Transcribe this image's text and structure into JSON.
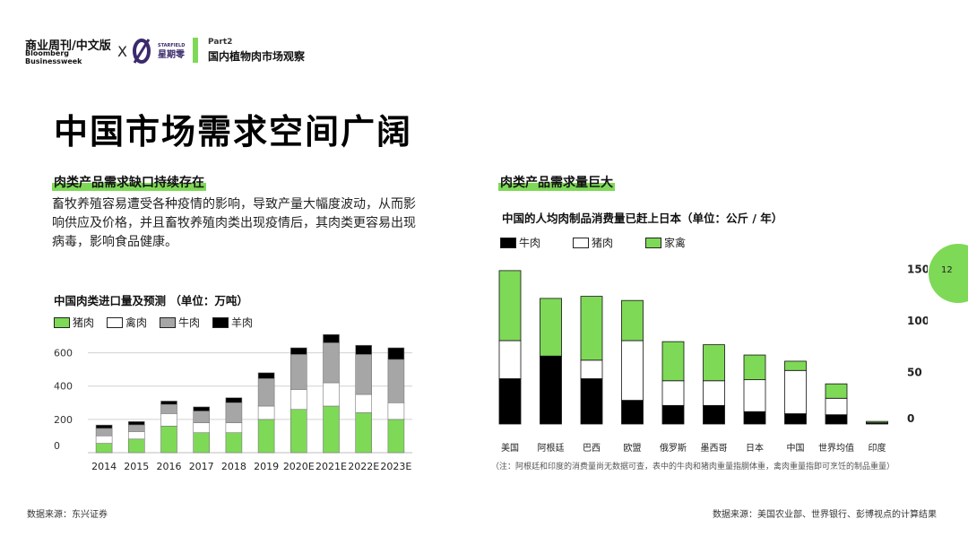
{
  "header": {
    "brand_cn": "商业周刊/中文版",
    "brand_en": "Bloomberg Businessweek",
    "separator": "X",
    "partner_cn": "星期零",
    "partner_en": "STARFIELD",
    "part_label": "Part2",
    "part_title": "国内植物肉市场观察",
    "accent_color": "#7ed957"
  },
  "main_title": "中国市场需求空间广阔",
  "left": {
    "subtitle": "肉类产品需求缺口持续存在",
    "paragraph": "畜牧养殖容易遭受各种疫情的影响，导致产量大幅度波动，从而影响供应及价格，并且畜牧养殖肉类出现疫情后，其肉类更容易出现病毒，影响食品健康。",
    "source": "数据来源：东兴证券"
  },
  "right": {
    "subtitle": "肉类产品需求量巨大",
    "source": "数据来源：美国农业部、世界银行、彭博视点的计算结果",
    "note": "（注：阿根廷和印度的消费量尚无数据可查，表中的牛肉和猪肉重量指胴体重，禽肉重量指即可烹饪的制品重量）"
  },
  "page_number": "12",
  "chart_data": [
    {
      "type": "bar",
      "stacked": true,
      "title": "中国肉类进口量及预测  （单位：万吨）",
      "categories": [
        "2014",
        "2015",
        "2016",
        "2017",
        "2018",
        "2019",
        "2020E",
        "2021E",
        "2022E",
        "2023E"
      ],
      "series": [
        {
          "name": "猪肉",
          "color": "#7ed957",
          "values": [
            56,
            82,
            160,
            120,
            120,
            200,
            260,
            280,
            240,
            200
          ]
        },
        {
          "name": "禽肉",
          "color": "#ffffff",
          "values": [
            45,
            45,
            75,
            60,
            60,
            80,
            120,
            140,
            110,
            100
          ]
        },
        {
          "name": "牛肉",
          "color": "#a6a6a6",
          "values": [
            45,
            40,
            55,
            70,
            120,
            165,
            210,
            240,
            240,
            260
          ]
        },
        {
          "name": "羊肉",
          "color": "#000000",
          "values": [
            20,
            20,
            20,
            25,
            30,
            35,
            40,
            50,
            55,
            70
          ]
        }
      ],
      "yticks": [
        0,
        200,
        400,
        600
      ],
      "ylim": [
        0,
        700
      ],
      "grid": true,
      "legend": "top-left"
    },
    {
      "type": "bar",
      "stacked": true,
      "title": "中国的人均肉制品消费量已赶上日本（单位：公斤 / 年）",
      "categories": [
        "美国",
        "阿根廷",
        "巴西",
        "欧盟",
        "俄罗斯",
        "墨西哥",
        "日本",
        "中国",
        "世界均值",
        "印度"
      ],
      "series": [
        {
          "name": "牛肉",
          "color": "#000000",
          "values": [
            44,
            66,
            44,
            23,
            18,
            18,
            12,
            10,
            9,
            0.5
          ]
        },
        {
          "name": "猪肉",
          "color": "#ffffff",
          "values": [
            37,
            0,
            18,
            58,
            24,
            24,
            31,
            42,
            16,
            0.7
          ]
        },
        {
          "name": "家禽",
          "color": "#7ed957",
          "values": [
            68,
            56,
            62,
            39,
            38,
            35,
            24,
            9,
            14,
            1.3
          ]
        }
      ],
      "yticks": [
        0,
        50,
        100,
        150
      ],
      "ylim": [
        0,
        155
      ],
      "grid": false,
      "legend": "top-left"
    }
  ]
}
